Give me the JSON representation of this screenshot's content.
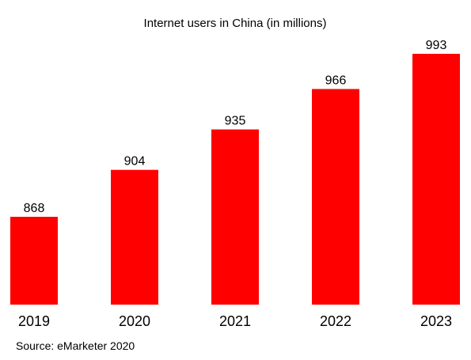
{
  "chart_data": {
    "type": "bar",
    "title": "Internet users in China (in millions)",
    "categories": [
      "2019",
      "2020",
      "2021",
      "2022",
      "2023"
    ],
    "values": [
      868,
      904,
      935,
      966,
      993
    ],
    "xlabel": "",
    "ylabel": "",
    "ylim": [
      0,
      993
    ],
    "grid": false,
    "legend": "none",
    "bar_color": "#ff0000",
    "data_labels": true
  },
  "source": "Source: eMarketer 2020"
}
